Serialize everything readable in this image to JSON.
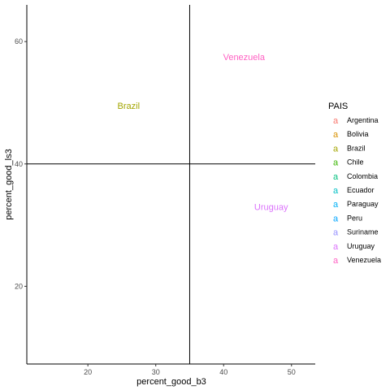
{
  "chart_data": {
    "type": "scatter",
    "mark": "text",
    "title": "",
    "xlabel": "percent_good_b3",
    "ylabel": "percent_good_ls3",
    "xlim": [
      11,
      53.5
    ],
    "ylim": [
      7.3,
      66
    ],
    "xticks": [
      20,
      30,
      40,
      50
    ],
    "yticks": [
      20,
      40,
      60
    ],
    "reference_lines": {
      "vline_x": 35,
      "hline_y": 40
    },
    "grid": false,
    "points": [
      {
        "label": "Brazil",
        "x": 26,
        "y": 49.5,
        "color": "#A3A500"
      },
      {
        "label": "Venezuela",
        "x": 43,
        "y": 57.5,
        "color": "#FF61C3"
      },
      {
        "label": "Uruguay",
        "x": 47,
        "y": 33,
        "color": "#DB72FB"
      }
    ],
    "legend": {
      "title": "PAIS",
      "position": "right",
      "key_glyph": "a",
      "entries": [
        {
          "name": "Argentina",
          "color": "#F8766D"
        },
        {
          "name": "Bolivia",
          "color": "#D89000"
        },
        {
          "name": "Brazil",
          "color": "#A3A500"
        },
        {
          "name": "Chile",
          "color": "#39B600"
        },
        {
          "name": "Colombia",
          "color": "#00BF7D"
        },
        {
          "name": "Ecuador",
          "color": "#00BFC4"
        },
        {
          "name": "Paraguay",
          "color": "#00B0F6"
        },
        {
          "name": "Peru",
          "color": "#00A5FF"
        },
        {
          "name": "Suriname",
          "color": "#9590FF"
        },
        {
          "name": "Uruguay",
          "color": "#DB72FB"
        },
        {
          "name": "Venezuela",
          "color": "#FF61C3"
        }
      ]
    }
  }
}
